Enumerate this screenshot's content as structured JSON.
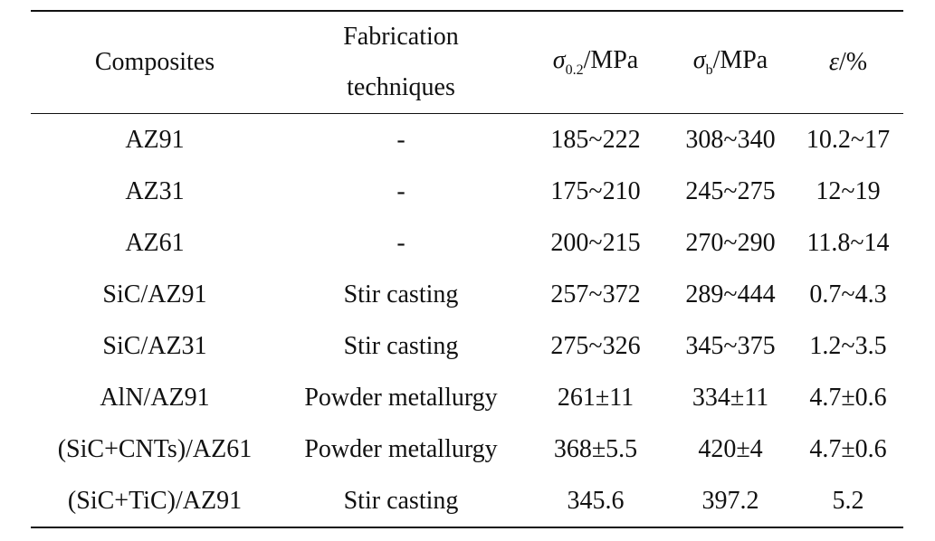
{
  "table": {
    "headers": {
      "composites": "Composites",
      "fabrication_line1": "Fabrication",
      "fabrication_line2": "techniques",
      "yield": {
        "symbol": "σ",
        "sub": "0.2",
        "unit": "/MPa"
      },
      "tensile": {
        "symbol": "σ",
        "sub": "b",
        "unit": "/MPa"
      },
      "elongation": {
        "symbol": "ε",
        "unit": "/%"
      }
    },
    "rows": [
      {
        "composite": "AZ91",
        "technique": "-",
        "yield": "185~222",
        "tensile": "308~340",
        "elongation": "10.2~17"
      },
      {
        "composite": "AZ31",
        "technique": "-",
        "yield": "175~210",
        "tensile": "245~275",
        "elongation": "12~19"
      },
      {
        "composite": "AZ61",
        "technique": "-",
        "yield": "200~215",
        "tensile": "270~290",
        "elongation": "11.8~14"
      },
      {
        "composite": "SiC/AZ91",
        "technique": "Stir casting",
        "yield": "257~372",
        "tensile": "289~444",
        "elongation": "0.7~4.3"
      },
      {
        "composite": "SiC/AZ31",
        "technique": "Stir casting",
        "yield": "275~326",
        "tensile": "345~375",
        "elongation": "1.2~3.5"
      },
      {
        "composite": "AlN/AZ91",
        "technique": "Powder metallurgy",
        "yield": "261±11",
        "tensile": "334±11",
        "elongation": "4.7±0.6"
      },
      {
        "composite": "(SiC+CNTs)/AZ61",
        "technique": "Powder metallurgy",
        "yield": "368±5.5",
        "tensile": "420±4",
        "elongation": "4.7±0.6"
      },
      {
        "composite": "(SiC+TiC)/AZ91",
        "technique": "Stir casting",
        "yield": "345.6",
        "tensile": "397.2",
        "elongation": "5.2"
      }
    ]
  }
}
